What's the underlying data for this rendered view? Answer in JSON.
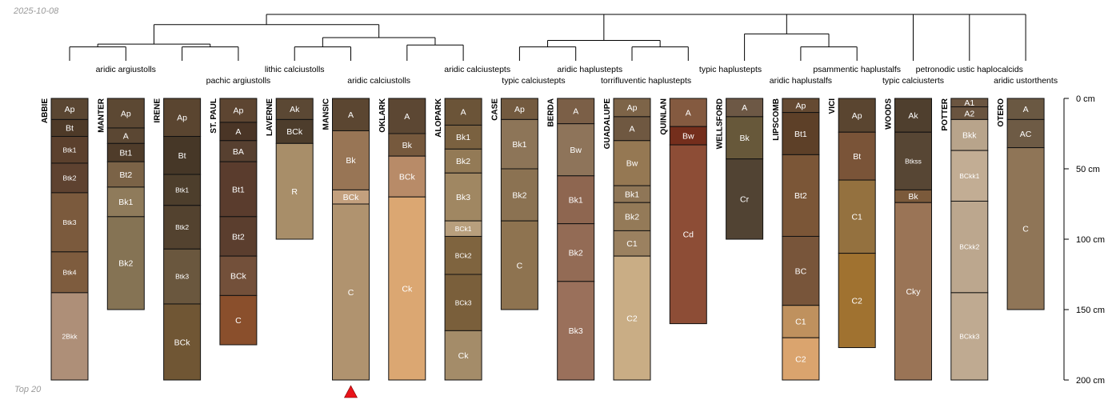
{
  "header": {
    "date": "2025-10-08",
    "footer": "Top 20"
  },
  "chart_data": {
    "type": "soil-profile-sketch",
    "depth_unit": "cm",
    "ylim": [
      0,
      200
    ],
    "depth_ticks": [
      {
        "value": 0,
        "label": "0 cm"
      },
      {
        "value": 50,
        "label": "50 cm"
      },
      {
        "value": 100,
        "label": "100 cm"
      },
      {
        "value": 150,
        "label": "150 cm"
      },
      {
        "value": 200,
        "label": "200 cm"
      }
    ],
    "taxa_labels": [
      {
        "text": "aridic argiustolls",
        "col": 1.0,
        "row": 0
      },
      {
        "text": "pachic argiustolls",
        "col": 3.0,
        "row": 1
      },
      {
        "text": "lithic calciustolls",
        "col": 4.0,
        "row": 0
      },
      {
        "text": "aridic calciustolls",
        "col": 5.5,
        "row": 1
      },
      {
        "text": "aridic calciustepts",
        "col": 7.25,
        "row": 0
      },
      {
        "text": "typic calciustepts",
        "col": 8.25,
        "row": 1
      },
      {
        "text": "aridic haplustepts",
        "col": 9.25,
        "row": 0
      },
      {
        "text": "torrifluventic haplustepts",
        "col": 10.25,
        "row": 1
      },
      {
        "text": "typic haplustepts",
        "col": 11.75,
        "row": 0
      },
      {
        "text": "aridic haplustalfs",
        "col": 13.0,
        "row": 1
      },
      {
        "text": "psammentic haplustalfs",
        "col": 14.0,
        "row": 0
      },
      {
        "text": "typic calciusterts",
        "col": 15.0,
        "row": 1
      },
      {
        "text": "petronodic ustic haplocalcids",
        "col": 16.0,
        "row": 0
      },
      {
        "text": "aridic ustorthents",
        "col": 17.0,
        "row": 1
      }
    ],
    "profiles": [
      {
        "name": "ABBIE",
        "horizons": [
          {
            "name": "Ap",
            "top": 0,
            "bottom": 15,
            "color": "#5a4632"
          },
          {
            "name": "Bt",
            "top": 15,
            "bottom": 27,
            "color": "#4e3a28"
          },
          {
            "name": "Btk1",
            "top": 27,
            "bottom": 46,
            "color": "#5b402d"
          },
          {
            "name": "Btk2",
            "top": 46,
            "bottom": 67,
            "color": "#5e4230"
          },
          {
            "name": "Btk3",
            "top": 67,
            "bottom": 109,
            "color": "#7b5a3d"
          },
          {
            "name": "Btk4",
            "top": 109,
            "bottom": 138,
            "color": "#7e5c3e"
          },
          {
            "name": "2Bkk",
            "top": 138,
            "bottom": 200,
            "color": "#ae8f78"
          }
        ]
      },
      {
        "name": "MANTER",
        "horizons": [
          {
            "name": "Ap",
            "top": 0,
            "bottom": 21,
            "color": "#5c4833"
          },
          {
            "name": "A",
            "top": 21,
            "bottom": 32,
            "color": "#5b4733"
          },
          {
            "name": "Bt1",
            "top": 32,
            "bottom": 45,
            "color": "#4f3c2a"
          },
          {
            "name": "Bt2",
            "top": 45,
            "bottom": 63,
            "color": "#7b6347"
          },
          {
            "name": "Bk1",
            "top": 63,
            "bottom": 84,
            "color": "#8f7b5b"
          },
          {
            "name": "Bk2",
            "top": 84,
            "bottom": 150,
            "color": "#857354"
          }
        ]
      },
      {
        "name": "IRENE",
        "horizons": [
          {
            "name": "Ap",
            "top": 0,
            "bottom": 27,
            "color": "#5a4530"
          },
          {
            "name": "Bt",
            "top": 27,
            "bottom": 54,
            "color": "#463727"
          },
          {
            "name": "Btk1",
            "top": 54,
            "bottom": 76,
            "color": "#4d3e2c"
          },
          {
            "name": "Btk2",
            "top": 76,
            "bottom": 107,
            "color": "#53422f"
          },
          {
            "name": "Btk3",
            "top": 107,
            "bottom": 146,
            "color": "#6a573e"
          },
          {
            "name": "BCk",
            "top": 146,
            "bottom": 200,
            "color": "#705634"
          }
        ]
      },
      {
        "name": "ST. PAUL",
        "horizons": [
          {
            "name": "Ap",
            "top": 0,
            "bottom": 17,
            "color": "#5d4531"
          },
          {
            "name": "A",
            "top": 17,
            "bottom": 30,
            "color": "#4a3526"
          },
          {
            "name": "BA",
            "top": 30,
            "bottom": 45,
            "color": "#574030"
          },
          {
            "name": "Bt1",
            "top": 45,
            "bottom": 84,
            "color": "#5a3c2d"
          },
          {
            "name": "Bt2",
            "top": 84,
            "bottom": 112,
            "color": "#5b3e2e"
          },
          {
            "name": "BCk",
            "top": 112,
            "bottom": 140,
            "color": "#73503a"
          },
          {
            "name": "C",
            "top": 140,
            "bottom": 175,
            "color": "#8a4f2c"
          }
        ]
      },
      {
        "name": "LAVERNE",
        "horizons": [
          {
            "name": "Ak",
            "top": 0,
            "bottom": 15,
            "color": "#5b4834"
          },
          {
            "name": "BCk",
            "top": 15,
            "bottom": 32,
            "color": "#4d3d2c"
          },
          {
            "name": "R",
            "top": 32,
            "bottom": 100,
            "color": "#a88e69"
          }
        ]
      },
      {
        "name": "MANSIC",
        "flag": true,
        "horizons": [
          {
            "name": "A",
            "top": 0,
            "bottom": 23,
            "color": "#5b4631"
          },
          {
            "name": "Bk",
            "top": 23,
            "bottom": 65,
            "color": "#987555"
          },
          {
            "name": "BCk",
            "top": 65,
            "bottom": 75,
            "color": "#c3a07e"
          },
          {
            "name": "C",
            "top": 75,
            "bottom": 200,
            "color": "#b0936f"
          }
        ]
      },
      {
        "name": "OKLARK",
        "horizons": [
          {
            "name": "A",
            "top": 0,
            "bottom": 25,
            "color": "#5c4733"
          },
          {
            "name": "Bk",
            "top": 25,
            "bottom": 41,
            "color": "#76593d"
          },
          {
            "name": "BCk",
            "top": 41,
            "bottom": 70,
            "color": "#b88b68"
          },
          {
            "name": "Ck",
            "top": 70,
            "bottom": 200,
            "color": "#dba772"
          }
        ]
      },
      {
        "name": "ALOPARK",
        "horizons": [
          {
            "name": "A",
            "top": 0,
            "bottom": 19,
            "color": "#6b5438"
          },
          {
            "name": "Bk1",
            "top": 19,
            "bottom": 36,
            "color": "#7a6140"
          },
          {
            "name": "Bk2",
            "top": 36,
            "bottom": 53,
            "color": "#937a56"
          },
          {
            "name": "Bk3",
            "top": 53,
            "bottom": 87,
            "color": "#a08762"
          },
          {
            "name": "BCk1",
            "top": 87,
            "bottom": 98,
            "color": "#b89f7d"
          },
          {
            "name": "BCk2",
            "top": 98,
            "bottom": 125,
            "color": "#7f643f"
          },
          {
            "name": "BCk3",
            "top": 125,
            "bottom": 165,
            "color": "#7a5f3b"
          },
          {
            "name": "Ck",
            "top": 165,
            "bottom": 200,
            "color": "#a48c69"
          }
        ]
      },
      {
        "name": "CASE",
        "horizons": [
          {
            "name": "Ap",
            "top": 0,
            "bottom": 15,
            "color": "#735a3f"
          },
          {
            "name": "Bk1",
            "top": 15,
            "bottom": 50,
            "color": "#8d7558"
          },
          {
            "name": "Bk2",
            "top": 50,
            "bottom": 87,
            "color": "#8b7252"
          },
          {
            "name": "C",
            "top": 87,
            "bottom": 150,
            "color": "#8e7350"
          }
        ]
      },
      {
        "name": "BERDA",
        "horizons": [
          {
            "name": "A",
            "top": 0,
            "bottom": 18,
            "color": "#7b5f47"
          },
          {
            "name": "Bw",
            "top": 18,
            "bottom": 55,
            "color": "#8e745a"
          },
          {
            "name": "Bk1",
            "top": 55,
            "bottom": 89,
            "color": "#8e6650"
          },
          {
            "name": "Bk2",
            "top": 89,
            "bottom": 130,
            "color": "#936b55"
          },
          {
            "name": "Bk3",
            "top": 130,
            "bottom": 200,
            "color": "#9a705b"
          }
        ]
      },
      {
        "name": "GUADALUPE",
        "horizons": [
          {
            "name": "Ap",
            "top": 0,
            "bottom": 13,
            "color": "#7d6448"
          },
          {
            "name": "A",
            "top": 13,
            "bottom": 30,
            "color": "#6f5841"
          },
          {
            "name": "Bw",
            "top": 30,
            "bottom": 62,
            "color": "#957853"
          },
          {
            "name": "Bk1",
            "top": 62,
            "bottom": 74,
            "color": "#8f7657"
          },
          {
            "name": "Bk2",
            "top": 74,
            "bottom": 94,
            "color": "#947a58"
          },
          {
            "name": "C1",
            "top": 94,
            "bottom": 112,
            "color": "#9b8160"
          },
          {
            "name": "C2",
            "top": 112,
            "bottom": 200,
            "color": "#c9ad85"
          }
        ]
      },
      {
        "name": "QUINLAN",
        "horizons": [
          {
            "name": "A",
            "top": 0,
            "bottom": 20,
            "color": "#845a40"
          },
          {
            "name": "Bw",
            "top": 20,
            "bottom": 33,
            "color": "#742e1c"
          },
          {
            "name": "Cd",
            "top": 33,
            "bottom": 160,
            "color": "#8d4d36"
          }
        ]
      },
      {
        "name": "WELLSFORD",
        "horizons": [
          {
            "name": "A",
            "top": 0,
            "bottom": 13,
            "color": "#6d5845"
          },
          {
            "name": "Bk",
            "top": 13,
            "bottom": 43,
            "color": "#67583a"
          },
          {
            "name": "Cr",
            "top": 43,
            "bottom": 100,
            "color": "#514333"
          }
        ]
      },
      {
        "name": "LIPSCOMB",
        "horizons": [
          {
            "name": "Ap",
            "top": 0,
            "bottom": 10,
            "color": "#654a32"
          },
          {
            "name": "Bt1",
            "top": 10,
            "bottom": 40,
            "color": "#5d4028"
          },
          {
            "name": "Bt2",
            "top": 40,
            "bottom": 98,
            "color": "#7b5637"
          },
          {
            "name": "BC",
            "top": 98,
            "bottom": 147,
            "color": "#78553a"
          },
          {
            "name": "C1",
            "top": 147,
            "bottom": 170,
            "color": "#bf915e"
          },
          {
            "name": "C2",
            "top": 170,
            "bottom": 200,
            "color": "#daa46e"
          }
        ]
      },
      {
        "name": "VICI",
        "horizons": [
          {
            "name": "Ap",
            "top": 0,
            "bottom": 24,
            "color": "#5a4530"
          },
          {
            "name": "Bt",
            "top": 24,
            "bottom": 58,
            "color": "#7a5438"
          },
          {
            "name": "C1",
            "top": 58,
            "bottom": 110,
            "color": "#94713f"
          },
          {
            "name": "C2",
            "top": 110,
            "bottom": 177,
            "color": "#a07230"
          }
        ]
      },
      {
        "name": "WOODS",
        "horizons": [
          {
            "name": "Ak",
            "top": 0,
            "bottom": 24,
            "color": "#4f3f2e"
          },
          {
            "name": "Btkss",
            "top": 24,
            "bottom": 65,
            "color": "#574634"
          },
          {
            "name": "Bk",
            "top": 65,
            "bottom": 74,
            "color": "#7b5a3b"
          },
          {
            "name": "Cky",
            "top": 74,
            "bottom": 200,
            "color": "#9a7456"
          }
        ]
      },
      {
        "name": "POTTER",
        "horizons": [
          {
            "name": "A1",
            "top": 0,
            "bottom": 6,
            "color": "#6b5540"
          },
          {
            "name": "A2",
            "top": 6,
            "bottom": 15,
            "color": "#6a543f"
          },
          {
            "name": "Bkk",
            "top": 15,
            "bottom": 37,
            "color": "#b8a48b"
          },
          {
            "name": "BCkk1",
            "top": 37,
            "bottom": 73,
            "color": "#c2ad94"
          },
          {
            "name": "BCkk2",
            "top": 73,
            "bottom": 138,
            "color": "#bca78e"
          },
          {
            "name": "BCkk3",
            "top": 138,
            "bottom": 200,
            "color": "#bfaa91"
          }
        ]
      },
      {
        "name": "OTERO",
        "horizons": [
          {
            "name": "A",
            "top": 0,
            "bottom": 15,
            "color": "#6a5842"
          },
          {
            "name": "AC",
            "top": 15,
            "bottom": 35,
            "color": "#6e5b45"
          },
          {
            "name": "C",
            "top": 35,
            "bottom": 150,
            "color": "#8f7557"
          }
        ]
      }
    ],
    "dendrogram": {
      "merges": [
        [
          [
            0
          ],
          [
            1
          ],
          30
        ],
        [
          [
            2
          ],
          [
            3
          ],
          30
        ],
        [
          [
            4
          ],
          [
            5
          ],
          30
        ],
        [
          [
            6
          ],
          [
            7
          ],
          34
        ],
        [
          [
            8
          ],
          [
            9
          ],
          30
        ],
        [
          [
            10
          ],
          [
            11
          ],
          30
        ],
        [
          [
            13
          ],
          [
            14
          ],
          30
        ],
        [
          [
            0,
            1
          ],
          [
            2,
            3
          ],
          36
        ],
        [
          [
            4,
            5
          ],
          [
            6,
            7
          ],
          50
        ],
        [
          [
            8,
            9
          ],
          [
            10,
            11
          ],
          44
        ],
        [
          [
            12
          ],
          [
            13,
            14
          ],
          58
        ],
        [
          [
            0,
            1,
            2,
            3
          ],
          [
            4,
            5,
            6,
            7
          ],
          78
        ],
        [
          [
            0,
            1,
            2,
            3,
            4,
            5,
            6,
            7
          ],
          [
            8,
            9,
            10,
            11
          ],
          100
        ],
        [
          [
            12,
            13,
            14
          ],
          [
            15
          ],
          100
        ],
        [
          [
            12,
            13,
            14,
            15
          ],
          [
            16
          ],
          100
        ],
        [
          [
            12,
            13,
            14,
            15,
            16
          ],
          [
            17
          ],
          100
        ],
        [
          [
            0,
            1,
            2,
            3,
            4,
            5,
            6,
            7,
            8,
            9,
            10,
            11
          ],
          [
            12,
            13,
            14,
            15,
            16,
            17
          ],
          100
        ]
      ]
    }
  }
}
